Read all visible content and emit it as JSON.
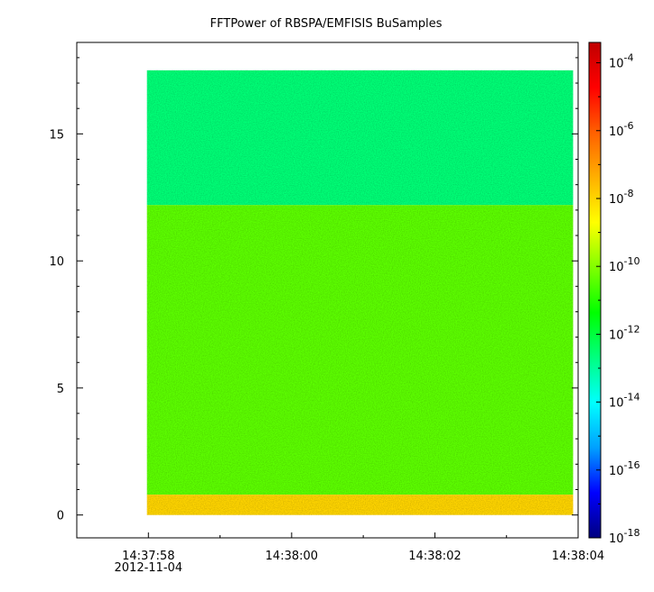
{
  "chart_data": {
    "type": "heatmap",
    "title": "FFTPower of RBSPA/EMFISIS  BuSamples",
    "xlabel": "",
    "ylabel": "",
    "x_ticks": [
      {
        "time": "14:37:58",
        "t": 0
      },
      {
        "time": "14:38:00",
        "t": 2
      },
      {
        "time": "14:38:02",
        "t": 4
      },
      {
        "time": "14:38:04",
        "t": 6
      }
    ],
    "x_date_label": "2012-11-04",
    "xlim_seconds_from_first_tick": [
      -1.0,
      6.0
    ],
    "y_ticks": [
      0,
      5,
      10,
      15
    ],
    "ylim": [
      -0.9,
      18.6
    ],
    "data_extent": {
      "time_start_s": -0.02,
      "time_end_s": 5.93,
      "y_min": 0.0,
      "y_max": 17.5
    },
    "colorbar": {
      "scale": "log",
      "range_exponents": [
        -18,
        -3.4
      ],
      "tick_exponents": [
        -18,
        -16,
        -14,
        -12,
        -10,
        -8,
        -6,
        -4
      ],
      "colors": [
        "#00007f",
        "#0000ff",
        "#00a0ff",
        "#00ffff",
        "#00ff80",
        "#00ff00",
        "#80ff00",
        "#ffff00",
        "#ffb000",
        "#ff6000",
        "#ff0000",
        "#c00000"
      ]
    },
    "regions": [
      {
        "y_range": [
          12.2,
          17.5
        ],
        "power_exponent": -12.6
      },
      {
        "y_range": [
          0.8,
          12.2
        ],
        "power_exponent": -10.4
      },
      {
        "y_range": [
          0.0,
          0.8
        ],
        "power_exponent": -8.0
      }
    ],
    "grid": false
  }
}
